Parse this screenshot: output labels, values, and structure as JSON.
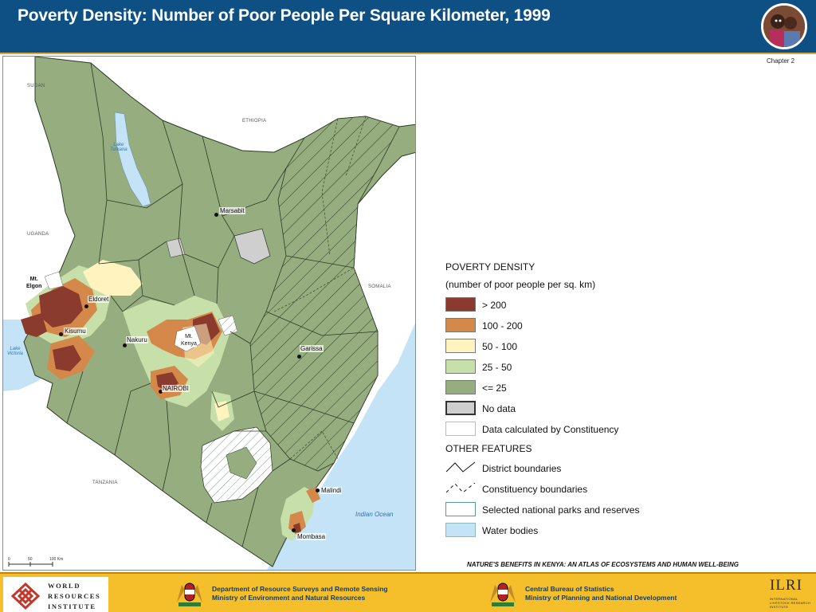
{
  "header": {
    "title": "Poverty Density: Number of Poor People Per Square Kilometer, 1999",
    "photo": "portrait-photo-of-children"
  },
  "chapter_label": "Chapter 2",
  "map": {
    "countries": {
      "sudan": "SUDAN",
      "ethiopia": "ETHIOPIA",
      "uganda": "UGANDA",
      "somalia": "SOMALIA",
      "tanzania": "TANZANIA"
    },
    "water_bodies": {
      "lake_turkana": "Lake\nTurkana",
      "lake_victoria": "Lake\nVictoria",
      "indian_ocean": "Indian Ocean"
    },
    "mountains": {
      "mt_elgon": "Mt.\nElgon",
      "mt_kenya": "Mt.\nKenya"
    },
    "towns": {
      "marsabit": "Marsabit",
      "eldoret": "Eldoret",
      "kisumu": "Kisumu",
      "nakuru": "Nakuru",
      "nairobi": "NAIROBI",
      "garissa": "Garissa",
      "malindi": "Malindi",
      "mombasa": "Mombasa"
    },
    "scale_bar": {
      "tick_0": "0",
      "tick_50": "50",
      "tick_100": "100 Km"
    }
  },
  "legend": {
    "title": "POVERTY DENSITY",
    "subtitle": "(number of poor people per sq. km)",
    "classes": [
      {
        "label": "> 200",
        "color": "#8b3a2e"
      },
      {
        "label": "100 - 200",
        "color": "#d4894a"
      },
      {
        "label": "50 - 100",
        "color": "#fff3bf"
      },
      {
        "label": "25 - 50",
        "color": "#c7e0a9"
      },
      {
        "label": "<= 25",
        "color": "#95ad7f"
      },
      {
        "label": "No data",
        "color": "#cfcfcf"
      },
      {
        "label": "Data calculated by Constituency",
        "color": "#ffffff"
      }
    ],
    "other_features_title": "OTHER FEATURES",
    "other_features": [
      {
        "label": "District boundaries",
        "icon": "district-boundary-line"
      },
      {
        "label": "Constituency boundaries",
        "icon": "constituency-boundary-dashed-line"
      },
      {
        "label": "Selected national parks and reserves",
        "icon": "park-reserve-hatch"
      },
      {
        "label": "Water bodies",
        "icon": "water-swatch",
        "color": "#c4e3f6"
      }
    ]
  },
  "atlas_title": "NATURE'S BENEFITS IN KENYA: AN ATLAS OF ECOSYSTEMS AND HUMAN WELL-BEING",
  "footer": {
    "wri": {
      "line1": "WORLD",
      "line2": "RESOURCES",
      "line3": "INSTITUTE"
    },
    "drsrs": {
      "line1": "Department of Resource Surveys and Remote Sensing",
      "line2": "Ministry of Environment and Natural Resources"
    },
    "cbs": {
      "line1": "Central Bureau of Statistics",
      "line2": "Ministry of Planning and National Development"
    },
    "ilri": {
      "abbr": "ILRI",
      "small1": "INTERNATIONAL",
      "small2": "LIVESTOCK RESEARCH",
      "small3": "INSTITUTE"
    },
    "colors": {
      "bar": "#f5bf2b",
      "org_text": "#0e3d6b"
    }
  },
  "colors": {
    "header_bg": "#0e4f84",
    "header_text": "#ffffff",
    "accent_rule": "#d9a63a"
  }
}
